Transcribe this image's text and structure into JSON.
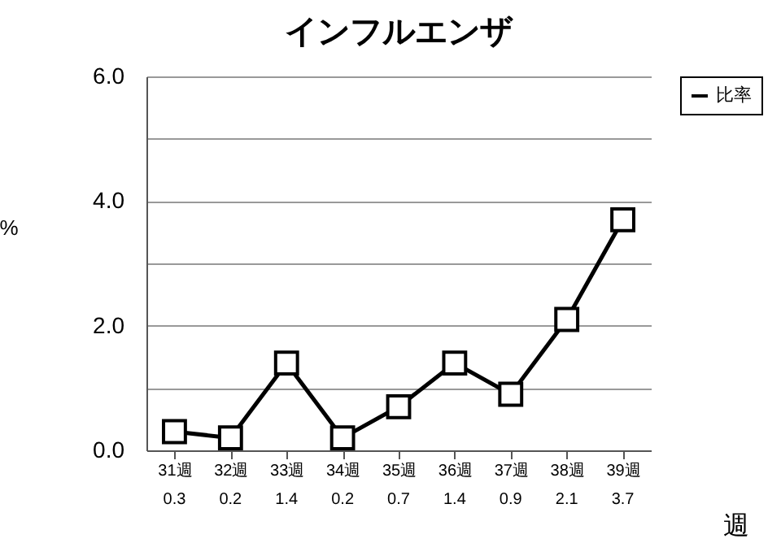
{
  "chart_data": {
    "type": "line",
    "title": "インフルエンザ",
    "xlabel": "週",
    "ylabel": "%",
    "categories": [
      "31週",
      "32週",
      "33週",
      "34週",
      "35週",
      "36週",
      "37週",
      "38週",
      "39週"
    ],
    "series": [
      {
        "name": "比率",
        "color": "#000000",
        "values": [
          0.3,
          0.2,
          1.4,
          0.2,
          0.7,
          1.4,
          0.9,
          2.1,
          3.7
        ]
      }
    ],
    "ylim": [
      0,
      6
    ],
    "yticks": [
      {
        "value": 0,
        "label": "0.0"
      },
      {
        "value": 1,
        "label": null
      },
      {
        "value": 2,
        "label": "2.0"
      },
      {
        "value": 3,
        "label": null
      },
      {
        "value": 4,
        "label": "4.0"
      },
      {
        "value": 5,
        "label": null
      },
      {
        "value": 6,
        "label": "6.0"
      }
    ],
    "grid": "y",
    "legend": "right",
    "marker": "square",
    "line_style": "solid",
    "data_labels": true
  }
}
